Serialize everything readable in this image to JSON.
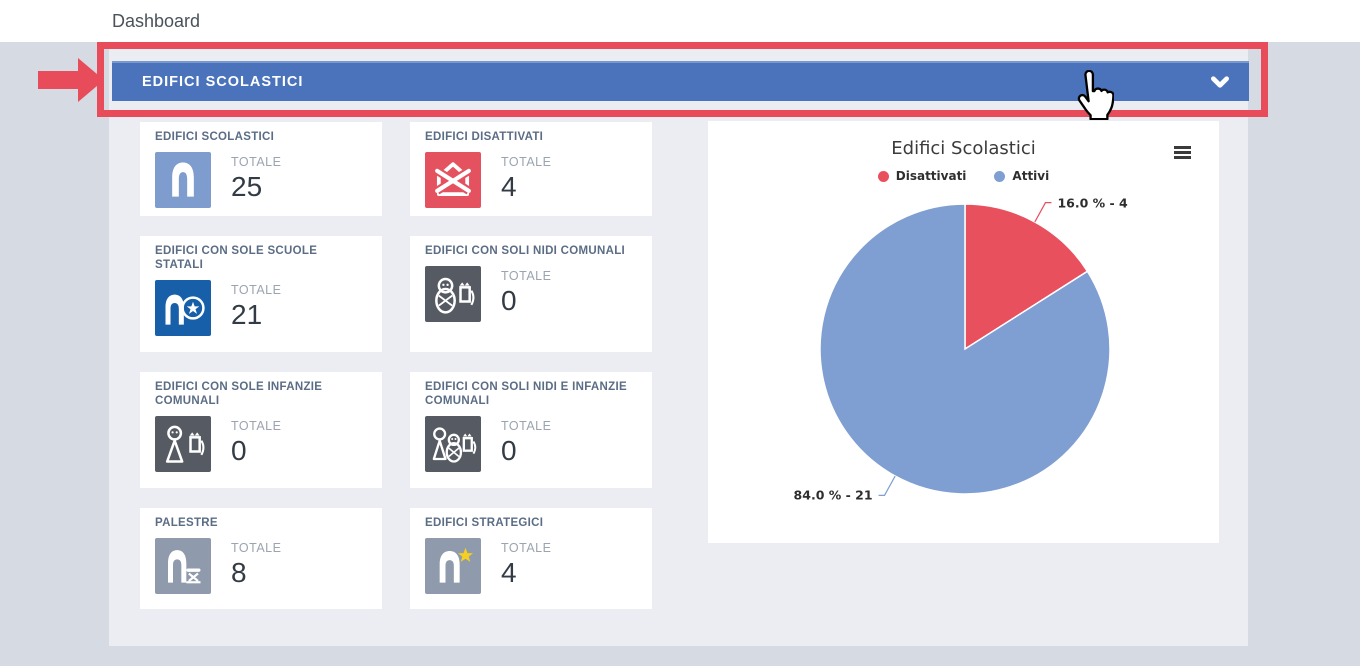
{
  "topbar": {
    "title": "Dashboard"
  },
  "section_header": {
    "title": "EDIFICI SCOLASTICI"
  },
  "cards": [
    {
      "title": "EDIFICI SCOLASTICI",
      "label": "TOTALE",
      "value": "25",
      "icon": "building-icon",
      "icon_color": "#7e9ccd"
    },
    {
      "title": "EDIFICI DISATTIVATI",
      "label": "TOTALE",
      "value": "4",
      "icon": "building-disabled-icon",
      "icon_color": "#e5525f"
    },
    {
      "title": "EDIFICI CON SOLE SCUOLE STATALI",
      "label": "TOTALE",
      "value": "21",
      "icon": "state-school-building-icon",
      "icon_color": "#175fa9"
    },
    {
      "title": "EDIFICI CON SOLI NIDI COMUNALI",
      "label": "TOTALE",
      "value": "0",
      "icon": "nursery-icon",
      "icon_color": "#565b63"
    },
    {
      "title": "EDIFICI CON SOLE INFANZIE COMUNALI",
      "label": "TOTALE",
      "value": "0",
      "icon": "kindergarten-icon",
      "icon_color": "#565b63"
    },
    {
      "title": "EDIFICI CON SOLI NIDI E INFANZIE COMUNALI",
      "label": "TOTALE",
      "value": "0",
      "icon": "nursery-kindergarten-icon",
      "icon_color": "#565b63"
    },
    {
      "title": "PALESTRE",
      "label": "TOTALE",
      "value": "8",
      "icon": "gym-building-icon",
      "icon_color": "#8f9aac"
    },
    {
      "title": "EDIFICI STRATEGICI",
      "label": "TOTALE",
      "value": "4",
      "icon": "strategic-building-icon",
      "icon_color": "#8f9aac"
    }
  ],
  "chart_data": {
    "type": "pie",
    "title": "Edifici Scolastici",
    "legend_position": "top",
    "total": 25,
    "start_angle": 0,
    "direction": "clockwise",
    "series": [
      {
        "name": "Disattivati",
        "value": 4,
        "percent": 16.0,
        "color": "#e9505e",
        "label": "16.0 % - 4"
      },
      {
        "name": "Attivi",
        "value": 21,
        "percent": 84.0,
        "color": "#7f9ed1",
        "label": "84.0 % - 21"
      }
    ]
  },
  "colors": {
    "section_header_blue": "#4a73bb",
    "annotation_red": "#e84b5a",
    "page_background": "#d6dae3",
    "panel_background": "#ebedf2"
  }
}
